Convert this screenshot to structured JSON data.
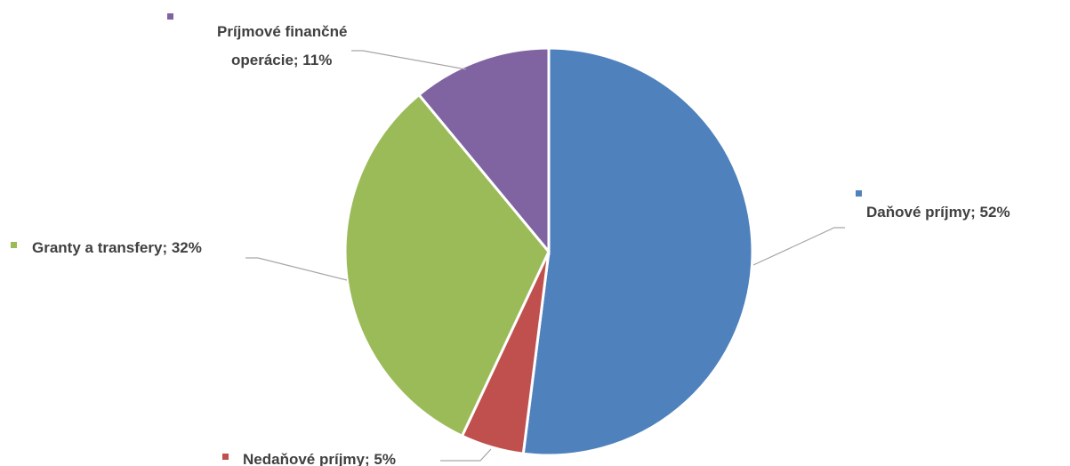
{
  "chart_data": {
    "type": "pie",
    "title": "",
    "start_angle_deg": 0,
    "direction": "clockwise",
    "slices": [
      {
        "label": "Daňové príjmy; 52%",
        "category": "Daňové príjmy",
        "value": 52,
        "color": "#4F81BD"
      },
      {
        "label": "Nedaňové príjmy; 5%",
        "category": "Nedaňové príjmy",
        "value": 5,
        "color": "#C0504D"
      },
      {
        "label": "Granty a transfery; 32%",
        "category": "Granty a transfery",
        "value": 32,
        "color": "#9BBB59"
      },
      {
        "label_lines": [
          "Príjmové finančné",
          "operácie; 11%"
        ],
        "category": "Príjmové finančné operácie",
        "value": 11,
        "color": "#8064A2"
      }
    ]
  }
}
